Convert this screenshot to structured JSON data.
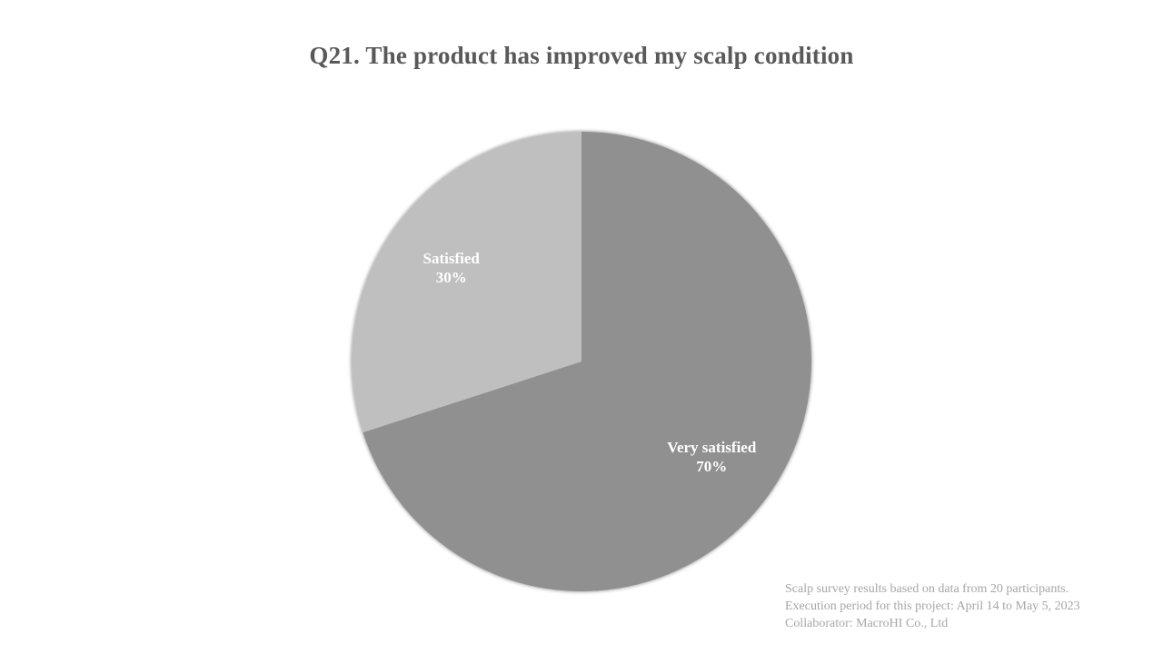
{
  "chart_data": {
    "type": "pie",
    "title": "Q21. The product has improved my scalp condition",
    "slices": [
      {
        "name": "Very satisfied",
        "value": 70,
        "label": "70%",
        "color": "#909090"
      },
      {
        "name": "Satisfied",
        "value": 30,
        "label": "30%",
        "color": "#bfbfbf"
      }
    ]
  },
  "footnote": {
    "line1": "Scalp survey results based on data from 20 participants.",
    "line2": "Execution period for this project: April 14 to May 5, 2023",
    "line3": "Collaborator: MacroHI Co., Ltd"
  }
}
